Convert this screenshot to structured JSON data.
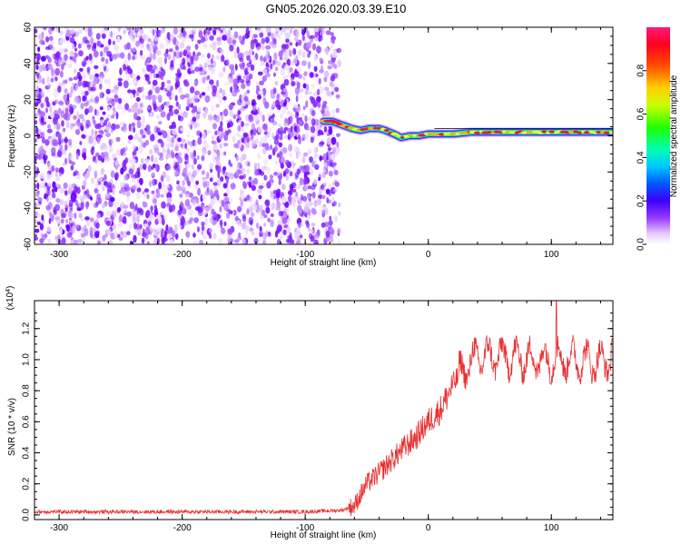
{
  "title": "GN05.2026.020.03.39.E10",
  "chart_data": [
    {
      "type": "heatmap",
      "name": "spectrogram",
      "xlabel": "Height of straight line (km)",
      "ylabel": "Frequency (Hz)",
      "xlim": [
        -320,
        150
      ],
      "ylim": [
        -60,
        60
      ],
      "x_ticks": [
        -300,
        -200,
        -100,
        0,
        100
      ],
      "y_ticks": [
        -60,
        -40,
        -20,
        0,
        20,
        40,
        60
      ],
      "noise_region_x": [
        -320,
        -78
      ],
      "signal_track": {
        "x": [
          -85,
          -78,
          -70,
          -62,
          -55,
          -48,
          -40,
          -35,
          -28,
          -22,
          -15,
          -8,
          0,
          10,
          20,
          35,
          50,
          65,
          80,
          95,
          110,
          125,
          140,
          150
        ],
        "freq": [
          8,
          8,
          6,
          4,
          3,
          4,
          4,
          3,
          1,
          -1,
          0,
          0,
          1,
          1,
          1,
          2,
          2,
          2,
          2,
          2,
          2,
          2,
          2,
          2
        ]
      },
      "colorbar": {
        "label": "Normalized spectral amplitude",
        "ticks": [
          0.0,
          0.2,
          0.4,
          0.6,
          0.8
        ]
      }
    },
    {
      "type": "line",
      "name": "snr",
      "xlabel": "Height of straight line (km)",
      "ylabel": "SNR (10 * v/v)",
      "scale_label": "(x10",
      "scale_exp": "4",
      "scale_suffix": ")",
      "xlim": [
        -320,
        150
      ],
      "ylim": [
        -0.03,
        1.38
      ],
      "x_ticks": [
        -300,
        -200,
        -100,
        0,
        100
      ],
      "y_ticks": [
        0.0,
        0.2,
        0.4,
        0.6,
        0.8,
        1.0,
        1.2
      ],
      "color": "#e83030",
      "trend": {
        "x": [
          -320,
          -100,
          -70,
          -60,
          -50,
          -40,
          -30,
          -20,
          -10,
          0,
          10,
          20,
          30,
          40,
          60,
          80,
          100,
          120,
          140,
          150
        ],
        "y": [
          0.02,
          0.02,
          0.03,
          0.06,
          0.2,
          0.27,
          0.35,
          0.43,
          0.5,
          0.6,
          0.68,
          0.84,
          0.95,
          1.02,
          1.02,
          1.0,
          1.0,
          1.0,
          0.98,
          1.02
        ]
      },
      "peak": {
        "x": 104,
        "y": 1.38
      }
    }
  ]
}
